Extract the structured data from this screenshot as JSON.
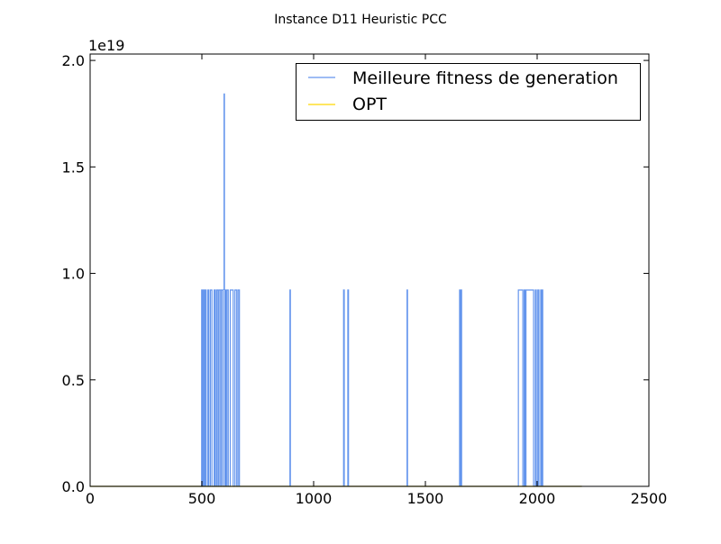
{
  "chart_data": {
    "type": "line",
    "title": "Instance D11 Heuristic PCC",
    "xlabel": "",
    "ylabel": "",
    "xlim": [
      0,
      2500
    ],
    "ylim": [
      0,
      2.03e+19
    ],
    "y_offset_label": "1e19",
    "x_ticks": [
      0,
      500,
      1000,
      1500,
      2000,
      2500
    ],
    "x_tick_labels": [
      "0",
      "500",
      "1000",
      "1500",
      "2000",
      "2500"
    ],
    "y_ticks": [
      0,
      5e+18,
      1e+19,
      1.5e+19,
      2e+19
    ],
    "y_tick_labels": [
      "0.0",
      "0.5",
      "1.0",
      "1.5",
      "2.0"
    ],
    "grid": false,
    "legend_position": "upper-right",
    "series": [
      {
        "name": "Meilleure fitness de generation",
        "color": "#6495ed",
        "high_value": 9.22e+18,
        "low_value": 0,
        "peak": {
          "x": 600,
          "y": 1.845e+19
        },
        "high_intervals": [
          [
            499,
            503
          ],
          [
            508,
            512
          ],
          [
            517,
            519
          ],
          [
            527,
            531
          ],
          [
            538,
            545
          ],
          [
            555,
            560
          ],
          [
            566,
            572
          ],
          [
            577,
            584
          ],
          [
            588,
            595
          ],
          [
            603,
            607
          ],
          [
            612,
            618
          ],
          [
            627,
            640
          ],
          [
            648,
            656
          ],
          [
            662,
            668
          ],
          [
            894,
            896
          ],
          [
            1134,
            1137
          ],
          [
            1153,
            1156
          ],
          [
            1418,
            1420
          ],
          [
            1653,
            1656
          ],
          [
            1660,
            1662
          ],
          [
            1916,
            1936
          ],
          [
            1942,
            1946
          ],
          [
            1950,
            1984
          ],
          [
            1992,
            1996
          ],
          [
            2003,
            2008
          ],
          [
            2016,
            2019
          ],
          [
            2022,
            2025
          ]
        ],
        "x_end": 2200
      },
      {
        "name": "OPT",
        "color": "#ffd700",
        "value": 0,
        "x_start": 0,
        "x_end": 2200
      }
    ]
  }
}
